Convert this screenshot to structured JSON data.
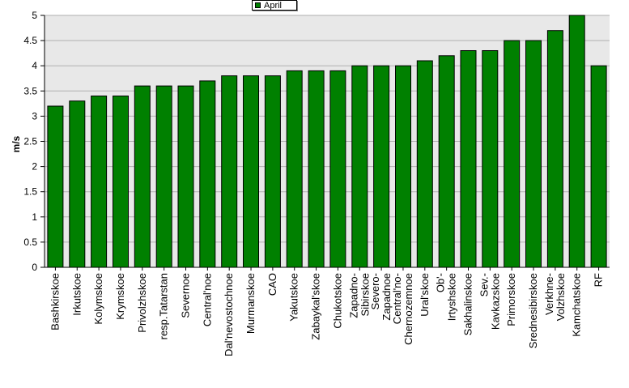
{
  "chart_data": {
    "type": "bar",
    "title": "",
    "xlabel": "",
    "ylabel": "m/s",
    "ylim": [
      0,
      5
    ],
    "yticks": [
      "0",
      "0.5",
      "1",
      "1.5",
      "2",
      "2.5",
      "3",
      "3.5",
      "4",
      "4.5",
      "5"
    ],
    "grid": true,
    "legend_position": "top-center",
    "categories": [
      "Bashkirskoe",
      "Irkutskoe",
      "Kolymskoe",
      "Krymskoe",
      "Privolzhskoe",
      "resp.Tatarstan",
      "Severnoe",
      "Central'noe",
      "Dal'nevostochnoe",
      "Murmanskoe",
      "CAO",
      "Yakutskoe",
      "Zabaykal'skoe",
      "Chukotskoe",
      "Zapadno-Sibirskoe",
      "Severo-Zapadnoe",
      "Central'no-Chernozemnoe",
      "Ural'skoe",
      "Ob'-Irtyshskoe",
      "Sakhalinskoe",
      "Sev.-Kavkazskoe",
      "Primorskoe",
      "Srednesibirskoe",
      "Verkhne-Volzhskoe",
      "Kamchatskoe",
      "RF"
    ],
    "series": [
      {
        "name": "April",
        "color": "#008000",
        "values": [
          3.2,
          3.3,
          3.4,
          3.4,
          3.6,
          3.6,
          3.6,
          3.7,
          3.8,
          3.8,
          3.8,
          3.9,
          3.9,
          3.9,
          4.0,
          4.0,
          4.0,
          4.1,
          4.2,
          4.3,
          4.3,
          4.5,
          4.5,
          4.7,
          5.0,
          4.0
        ]
      }
    ],
    "colors": {
      "plot_background": "#e8e8e8",
      "grid": "#b0b0b0",
      "bar_fill": "#008000",
      "bar_edge": "#000000"
    }
  }
}
